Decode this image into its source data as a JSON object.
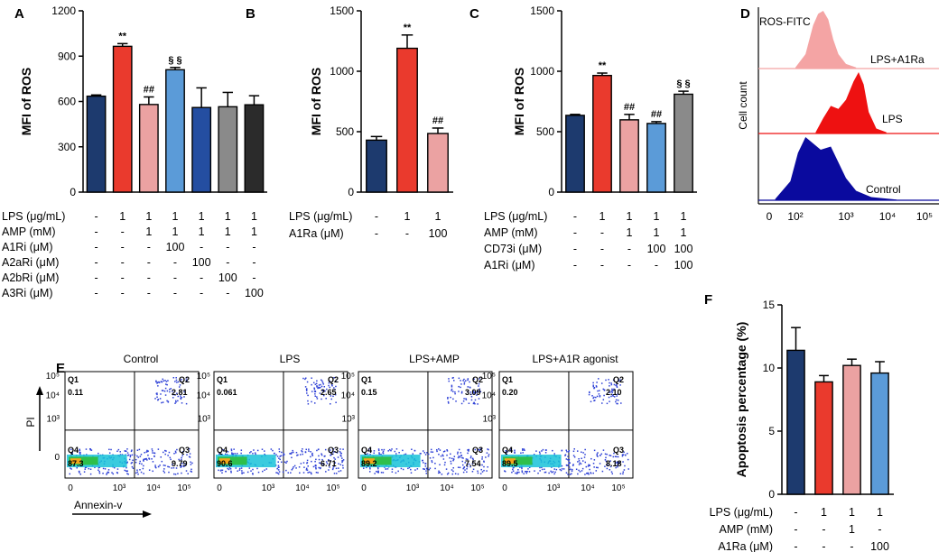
{
  "chart_data": [
    {
      "panel": "A",
      "type": "bar",
      "ylabel": "MFI of ROS",
      "ylim": [
        0,
        1200
      ],
      "yticks": [
        0,
        300,
        600,
        900,
        1200
      ],
      "bars": [
        {
          "value": 635,
          "err": 8,
          "color": "#1d3a6e",
          "sig": ""
        },
        {
          "value": 965,
          "err": 18,
          "color": "#ea3a2d",
          "sig": "**"
        },
        {
          "value": 580,
          "err": 50,
          "color": "#eba2a2",
          "sig": "##"
        },
        {
          "value": 810,
          "err": 15,
          "color": "#5b9bd8",
          "sig": "§ §"
        },
        {
          "value": 560,
          "err": 130,
          "color": "#244ea1",
          "sig": ""
        },
        {
          "value": 565,
          "err": 95,
          "color": "#8a8a8a",
          "sig": ""
        },
        {
          "value": 578,
          "err": 60,
          "color": "#2b2b2b",
          "sig": ""
        }
      ],
      "conditions": [
        {
          "label": "LPS (μg/mL)",
          "values": [
            "-",
            "1",
            "1",
            "1",
            "1",
            "1",
            "1"
          ]
        },
        {
          "label": "AMP (mM)",
          "values": [
            "-",
            "-",
            "1",
            "1",
            "1",
            "1",
            "1"
          ]
        },
        {
          "label": "A1Ri (μM)",
          "values": [
            "-",
            "-",
            "-",
            "100",
            "-",
            "-",
            "-"
          ]
        },
        {
          "label": "A2aRi (μM)",
          "values": [
            "-",
            "-",
            "-",
            "-",
            "100",
            "-",
            "-"
          ]
        },
        {
          "label": "A2bRi (μM)",
          "values": [
            "-",
            "-",
            "-",
            "-",
            "-",
            "100",
            "-"
          ]
        },
        {
          "label": "A3Ri (μM)",
          "values": [
            "-",
            "-",
            "-",
            "-",
            "-",
            "-",
            "100"
          ]
        }
      ]
    },
    {
      "panel": "B",
      "type": "bar",
      "ylabel": "MFI of ROS",
      "ylim": [
        0,
        1500
      ],
      "yticks": [
        0,
        500,
        1000,
        1500
      ],
      "bars": [
        {
          "value": 430,
          "err": 30,
          "color": "#1d3a6e",
          "sig": ""
        },
        {
          "value": 1190,
          "err": 110,
          "color": "#ea3a2d",
          "sig": "**"
        },
        {
          "value": 485,
          "err": 45,
          "color": "#eba2a2",
          "sig": "##"
        }
      ],
      "conditions": [
        {
          "label": "LPS (μg/mL)",
          "values": [
            "-",
            "1",
            "1"
          ]
        },
        {
          "label": "A1Ra (μM)",
          "values": [
            "-",
            "-",
            "100"
          ]
        }
      ]
    },
    {
      "panel": "C",
      "type": "bar",
      "ylabel": "MFI of ROS",
      "ylim": [
        0,
        1500
      ],
      "yticks": [
        0,
        500,
        1000,
        1500
      ],
      "bars": [
        {
          "value": 635,
          "err": 8,
          "color": "#1d3a6e",
          "sig": ""
        },
        {
          "value": 965,
          "err": 20,
          "color": "#ea3a2d",
          "sig": "**"
        },
        {
          "value": 598,
          "err": 45,
          "color": "#eba2a2",
          "sig": "##"
        },
        {
          "value": 568,
          "err": 15,
          "color": "#5b9bd8",
          "sig": "##"
        },
        {
          "value": 810,
          "err": 25,
          "color": "#8a8a8a",
          "sig": "§ §"
        }
      ],
      "conditions": [
        {
          "label": "LPS (μg/mL)",
          "values": [
            "-",
            "1",
            "1",
            "1",
            "1"
          ]
        },
        {
          "label": "AMP (mM)",
          "values": [
            "-",
            "-",
            "1",
            "1",
            "1"
          ]
        },
        {
          "label": "CD73i (μM)",
          "values": [
            "-",
            "-",
            "-",
            "100",
            "100"
          ]
        },
        {
          "label": "A1Ri (μM)",
          "values": [
            "-",
            "-",
            "-",
            "-",
            "100"
          ]
        }
      ]
    },
    {
      "panel": "D",
      "type": "histogram",
      "ylabel": "Cell count",
      "title": "ROS-FITC",
      "xticks": [
        "0",
        "10²",
        "10³",
        "10⁴",
        "10⁵"
      ],
      "series": [
        {
          "name": "LPS+A1Ra",
          "color": "#f4a4a4",
          "peak_log": 2.6
        },
        {
          "name": "LPS",
          "color": "#ee1111",
          "peak_log": 3.2
        },
        {
          "name": "Control",
          "color": "#0a0a9e",
          "peak_log": 2.4
        }
      ]
    },
    {
      "panel": "E",
      "type": "scatter",
      "xlabel": "Annexin-v",
      "ylabel": "PI",
      "xticks": [
        "0",
        "10³",
        "10⁴",
        "10⁵"
      ],
      "yticks": [
        "0",
        "10³",
        "10⁴",
        "10⁵"
      ],
      "plots": [
        {
          "title": "Control",
          "q1": "0.11",
          "q2": "2.81",
          "q3": "9.79",
          "q4": "87.3"
        },
        {
          "title": "LPS",
          "q1": "0.061",
          "q2": "2.65",
          "q3": "6.71",
          "q4": "90.6"
        },
        {
          "title": "LPS+AMP",
          "q1": "0.15",
          "q2": "3.09",
          "q3": "7.54",
          "q4": "89.2"
        },
        {
          "title": "LPS+A1R agonist",
          "q1": "0.20",
          "q2": "2.10",
          "q3": "8.18",
          "q4": "89.5"
        }
      ],
      "quadrant_labels": [
        "Q1",
        "Q2",
        "Q3",
        "Q4"
      ]
    },
    {
      "panel": "F",
      "type": "bar",
      "ylabel": "Apoptosis percentage (%)",
      "ylim": [
        0,
        15
      ],
      "yticks": [
        0,
        5,
        10,
        15
      ],
      "bars": [
        {
          "value": 11.4,
          "err": 1.8,
          "color": "#1d3a6e",
          "sig": ""
        },
        {
          "value": 8.9,
          "err": 0.5,
          "color": "#ea3a2d",
          "sig": ""
        },
        {
          "value": 10.2,
          "err": 0.5,
          "color": "#eba2a2",
          "sig": ""
        },
        {
          "value": 9.6,
          "err": 0.9,
          "color": "#5b9bd8",
          "sig": ""
        }
      ],
      "conditions": [
        {
          "label": "LPS (μg/mL)",
          "values": [
            "-",
            "1",
            "1",
            "1"
          ]
        },
        {
          "label": "AMP (mM)",
          "values": [
            "-",
            "-",
            "1",
            "-"
          ]
        },
        {
          "label": "A1Ra (μM)",
          "values": [
            "-",
            "-",
            "-",
            "100"
          ]
        }
      ]
    }
  ]
}
